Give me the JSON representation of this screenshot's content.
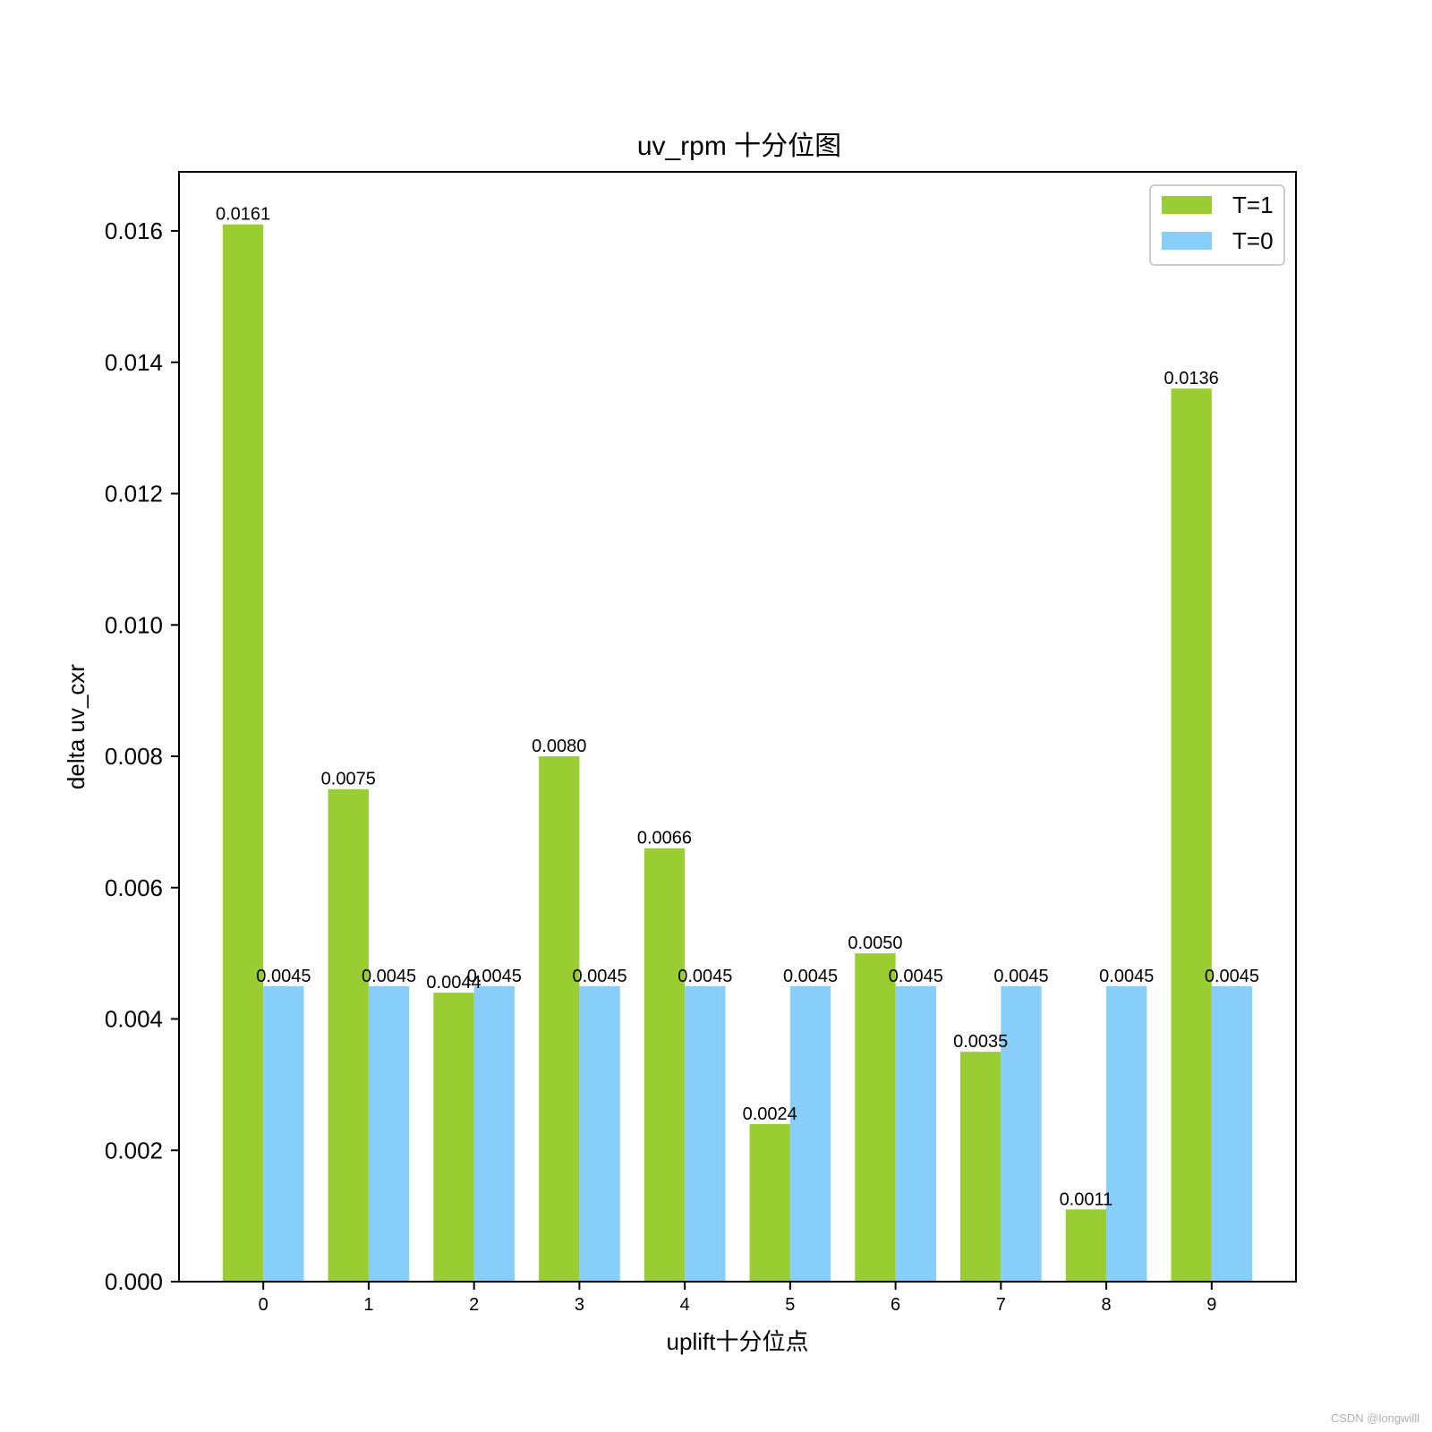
{
  "watermark": "CSDN @longwilll",
  "chart_data": {
    "type": "bar",
    "title": "uv_rpm 十分位图",
    "xlabel": "uplift十分位点",
    "ylabel": "delta uv_cxr",
    "categories": [
      "0",
      "1",
      "2",
      "3",
      "4",
      "5",
      "6",
      "7",
      "8",
      "9"
    ],
    "series": [
      {
        "name": "T=1",
        "color": "#9acd32",
        "values": [
          0.0161,
          0.0075,
          0.0044,
          0.008,
          0.0066,
          0.0024,
          0.005,
          0.0035,
          0.0011,
          0.0136
        ],
        "labels": [
          "0.0161",
          "0.0075",
          "0.0044",
          "0.0080",
          "0.0066",
          "0.0024",
          "0.0050",
          "0.0035",
          "0.0011",
          "0.0136"
        ]
      },
      {
        "name": "T=0",
        "color": "#87cefa",
        "values": [
          0.0045,
          0.0045,
          0.0045,
          0.0045,
          0.0045,
          0.0045,
          0.0045,
          0.0045,
          0.0045,
          0.0045
        ],
        "labels": [
          "0.0045",
          "0.0045",
          "0.0045",
          "0.0045",
          "0.0045",
          "0.0045",
          "0.0045",
          "0.0045",
          "0.0045",
          "0.0045"
        ]
      }
    ],
    "ylim": [
      0,
      0.0169
    ],
    "yticks": [
      0.0,
      0.002,
      0.004,
      0.006,
      0.008,
      0.01,
      0.012,
      0.014,
      0.016
    ],
    "ytick_labels": [
      "0.000",
      "0.002",
      "0.004",
      "0.006",
      "0.008",
      "0.010",
      "0.012",
      "0.014",
      "0.016"
    ],
    "grid": false,
    "legend_position": "top-right"
  }
}
